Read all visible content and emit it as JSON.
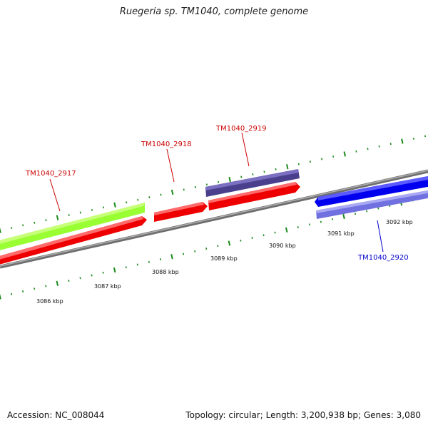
{
  "title": "Ruegeria sp. TM1040, complete genome",
  "footer": {
    "accession": "Accession: NC_008044",
    "summary": "Topology: circular; Length: 3,200,938 bp; Genes: 3,080"
  },
  "colors": {
    "backbone": "#8a8a8a",
    "gene_forward": "#ff0000",
    "gene_green": "#99ff33",
    "cds_navy": "#4a3f8c",
    "cds_blue": "#0000ff",
    "cds_lightblue": "#8080e8",
    "tick_green": "#1a8a1a",
    "label_red": "#cc0000",
    "label_blue": "#0000cc"
  },
  "scale_labels": [
    {
      "kbp": 3086,
      "text": "3086 kbp"
    },
    {
      "kbp": 3087,
      "text": "3087 kbp"
    },
    {
      "kbp": 3088,
      "text": "3088 kbp"
    },
    {
      "kbp": 3089,
      "text": "3089 kbp"
    },
    {
      "kbp": 3090,
      "text": "3090 kbp"
    },
    {
      "kbp": 3091,
      "text": "3091 kbp"
    },
    {
      "kbp": 3092,
      "text": "3092 kbp"
    }
  ],
  "gene_labels": [
    {
      "id": "TM1040_2917",
      "text": "TM1040_2917",
      "color": "label_red"
    },
    {
      "id": "TM1040_2918",
      "text": "TM1040_2918",
      "color": "label_red"
    },
    {
      "id": "TM1040_2919",
      "text": "TM1040_2919",
      "color": "label_red"
    },
    {
      "id": "TM1040_2920",
      "text": "TM1040_2920",
      "color": "label_blue"
    }
  ]
}
